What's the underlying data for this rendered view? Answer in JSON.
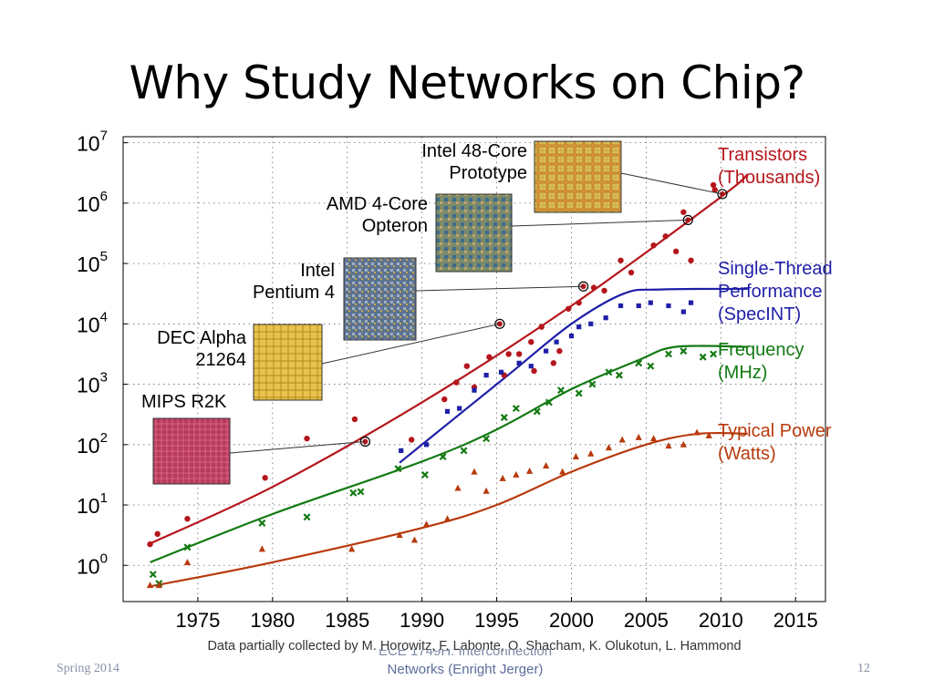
{
  "slide": {
    "title": "Why Study Networks on Chip?",
    "footer_left": "Spring 2014",
    "footer_center_line1": "ECE 1749H: Interconnection",
    "footer_center_line2": "Networks (Enright Jerger)",
    "page_number": "12"
  },
  "chart_data": {
    "type": "scatter",
    "xlabel": "",
    "ylabel": "",
    "xlim": [
      1970,
      2017
    ],
    "ylim_log10": [
      -0.6,
      7.1
    ],
    "y_scale": "log",
    "grid": true,
    "x_ticks": [
      "1975",
      "1980",
      "1985",
      "1990",
      "1995",
      "2000",
      "2005",
      "2010",
      "2015"
    ],
    "y_ticks": [
      {
        "base": "10",
        "exp": "7"
      },
      {
        "base": "10",
        "exp": "6"
      },
      {
        "base": "10",
        "exp": "5"
      },
      {
        "base": "10",
        "exp": "4"
      },
      {
        "base": "10",
        "exp": "3"
      },
      {
        "base": "10",
        "exp": "2"
      },
      {
        "base": "10",
        "exp": "1"
      },
      {
        "base": "10",
        "exp": "0"
      }
    ],
    "caption": "Data partially collected by M. Horowitz, F. Labonte, O. Shacham, K. Olukotun, L. Hammond",
    "series": [
      {
        "name": "Transistors (Thousands)",
        "label_line1": "Transistors",
        "label_line2": "(Thousands)",
        "color": "#b5161b",
        "marker": "circle",
        "trend": [
          [
            1971.7,
            0.35
          ],
          [
            1980,
            1.3
          ],
          [
            1990,
            2.7
          ],
          [
            2000,
            4.3
          ],
          [
            2010,
            6.1
          ],
          [
            2011.8,
            6.48
          ]
        ],
        "points": [
          [
            1971.8,
            0.35
          ],
          [
            1972.3,
            0.52
          ],
          [
            1974.3,
            0.77
          ],
          [
            1979.5,
            1.45
          ],
          [
            1982.3,
            2.1
          ],
          [
            1985.5,
            2.42
          ],
          [
            1989.3,
            2.08
          ],
          [
            1991.5,
            2.75
          ],
          [
            1992.3,
            3.03
          ],
          [
            1993,
            3.3
          ],
          [
            1993.5,
            2.95
          ],
          [
            1994.5,
            3.45
          ],
          [
            1995.5,
            3.15
          ],
          [
            1995.8,
            3.5
          ],
          [
            1996.5,
            3.5
          ],
          [
            1997.3,
            3.7
          ],
          [
            1997.5,
            3.22
          ],
          [
            1998,
            3.95
          ],
          [
            1998.8,
            3.35
          ],
          [
            1999.2,
            3.55
          ],
          [
            1999.8,
            4.25
          ],
          [
            2000.5,
            4.35
          ],
          [
            2001.5,
            4.6
          ],
          [
            2002.2,
            4.55
          ],
          [
            2003.3,
            5.05
          ],
          [
            2004,
            4.85
          ],
          [
            2005.5,
            5.3
          ],
          [
            2006.3,
            5.45
          ],
          [
            2007,
            5.2
          ],
          [
            2007.5,
            5.85
          ],
          [
            2008,
            5.05
          ],
          [
            2009.5,
            6.3
          ],
          [
            2009.6,
            6.22
          ]
        ],
        "highlight": [
          [
            1986.2,
            2.05
          ],
          [
            1995.2,
            4.0
          ],
          [
            2000.8,
            4.62
          ],
          [
            2007.8,
            5.72
          ],
          [
            2010.1,
            6.15
          ]
        ]
      },
      {
        "name": "Single-Thread Performance (SpecINT)",
        "label_line1": "Single-Thread",
        "label_line2": "Performance",
        "label_line3": "(SpecINT)",
        "color": "#1f1fa8",
        "marker": "square",
        "trend": [
          [
            1988.5,
            1.7
          ],
          [
            1992,
            2.4
          ],
          [
            1996,
            3.2
          ],
          [
            2000,
            4.0
          ],
          [
            2003.5,
            4.5
          ],
          [
            2006,
            4.57
          ],
          [
            2011.8,
            4.58
          ]
        ],
        "points": [
          [
            1988.6,
            1.9
          ],
          [
            1990.3,
            2.0
          ],
          [
            1991.7,
            2.55
          ],
          [
            1992.5,
            2.6
          ],
          [
            1993.5,
            2.9
          ],
          [
            1994.3,
            3.15
          ],
          [
            1995.3,
            3.2
          ],
          [
            1996.5,
            3.35
          ],
          [
            1997.3,
            3.3
          ],
          [
            1998.3,
            3.55
          ],
          [
            1999,
            3.7
          ],
          [
            2000,
            3.8
          ],
          [
            2000.5,
            3.95
          ],
          [
            2001.3,
            4.0
          ],
          [
            2002.3,
            4.1
          ],
          [
            2003.3,
            4.3
          ],
          [
            2004.5,
            4.3
          ],
          [
            2005.3,
            4.35
          ],
          [
            2006.5,
            4.3
          ],
          [
            2007.5,
            4.2
          ],
          [
            2008,
            4.35
          ]
        ]
      },
      {
        "name": "Frequency (MHz)",
        "label_line1": "Frequency",
        "label_line2": "(MHz)",
        "color": "#137a13",
        "marker": "x",
        "trend": [
          [
            1971.8,
            0.05
          ],
          [
            1980,
            0.85
          ],
          [
            1990,
            1.72
          ],
          [
            1995,
            2.25
          ],
          [
            2000,
            2.92
          ],
          [
            2004.5,
            3.4
          ],
          [
            2007,
            3.62
          ],
          [
            2011.8,
            3.62
          ]
        ],
        "points": [
          [
            1972,
            -0.15
          ],
          [
            1972.4,
            -0.3
          ],
          [
            1974.3,
            0.3
          ],
          [
            1979.3,
            0.7
          ],
          [
            1982.3,
            0.8
          ],
          [
            1985.4,
            1.2
          ],
          [
            1985.9,
            1.22
          ],
          [
            1988.4,
            1.6
          ],
          [
            1990.2,
            1.5
          ],
          [
            1991.4,
            1.8
          ],
          [
            1992.8,
            1.9
          ],
          [
            1994.3,
            2.1
          ],
          [
            1995.5,
            2.45
          ],
          [
            1996.3,
            2.6
          ],
          [
            1997.7,
            2.55
          ],
          [
            1998.5,
            2.7
          ],
          [
            1999.3,
            2.9
          ],
          [
            2000.5,
            2.85
          ],
          [
            2001.4,
            3.0
          ],
          [
            2002.5,
            3.2
          ],
          [
            2003.2,
            3.15
          ],
          [
            2004.5,
            3.35
          ],
          [
            2005.3,
            3.3
          ],
          [
            2006.5,
            3.5
          ],
          [
            2007.5,
            3.55
          ],
          [
            2008.8,
            3.45
          ],
          [
            2009.5,
            3.5
          ]
        ]
      },
      {
        "name": "Typical Power (Watts)",
        "label_line1": "Typical Power",
        "label_line2": "(Watts)",
        "color": "#b83a0d",
        "marker": "triangle",
        "trend": [
          [
            1971.8,
            -0.35
          ],
          [
            1980,
            0.05
          ],
          [
            1990,
            0.62
          ],
          [
            1995,
            1.0
          ],
          [
            2000,
            1.55
          ],
          [
            2005,
            2.0
          ],
          [
            2008.5,
            2.18
          ],
          [
            2011.8,
            2.18
          ]
        ],
        "points": [
          [
            1971.8,
            -0.33
          ],
          [
            1972.4,
            -0.33
          ],
          [
            1974.3,
            0.05
          ],
          [
            1979.3,
            0.27
          ],
          [
            1985.3,
            0.27
          ],
          [
            1988.5,
            0.5
          ],
          [
            1989.5,
            0.42
          ],
          [
            1990.3,
            0.68
          ],
          [
            1991.7,
            0.77
          ],
          [
            1992.4,
            1.28
          ],
          [
            1993.5,
            1.55
          ],
          [
            1994.3,
            1.23
          ],
          [
            1995.4,
            1.44
          ],
          [
            1996.3,
            1.5
          ],
          [
            1997.2,
            1.56
          ],
          [
            1998.3,
            1.65
          ],
          [
            1999.4,
            1.55
          ],
          [
            2000.3,
            1.8
          ],
          [
            2001.3,
            1.85
          ],
          [
            2002.5,
            1.95
          ],
          [
            2003.4,
            2.08
          ],
          [
            2004.5,
            2.12
          ],
          [
            2005.5,
            2.1
          ],
          [
            2006.5,
            1.98
          ],
          [
            2007.5,
            2.0
          ],
          [
            2008.4,
            2.2
          ],
          [
            2009.2,
            2.15
          ]
        ]
      }
    ],
    "annotations": [
      {
        "label_line1": "MIPS R2K",
        "label_line2": "",
        "point": [
          1986.2,
          2.05
        ],
        "chip": "mips"
      },
      {
        "label_line1": "DEC Alpha",
        "label_line2": "21264",
        "point": [
          1995.2,
          4.0
        ],
        "chip": "alpha"
      },
      {
        "label_line1": "Intel",
        "label_line2": "Pentium 4",
        "point": [
          2000.8,
          4.62
        ],
        "chip": "pentium"
      },
      {
        "label_line1": "AMD 4-Core",
        "label_line2": "Opteron",
        "point": [
          2007.8,
          5.72
        ],
        "chip": "opteron"
      },
      {
        "label_line1": "Intel 48-Core",
        "label_line2": "Prototype",
        "point": [
          2010.1,
          6.15
        ],
        "chip": "intel48"
      }
    ]
  }
}
